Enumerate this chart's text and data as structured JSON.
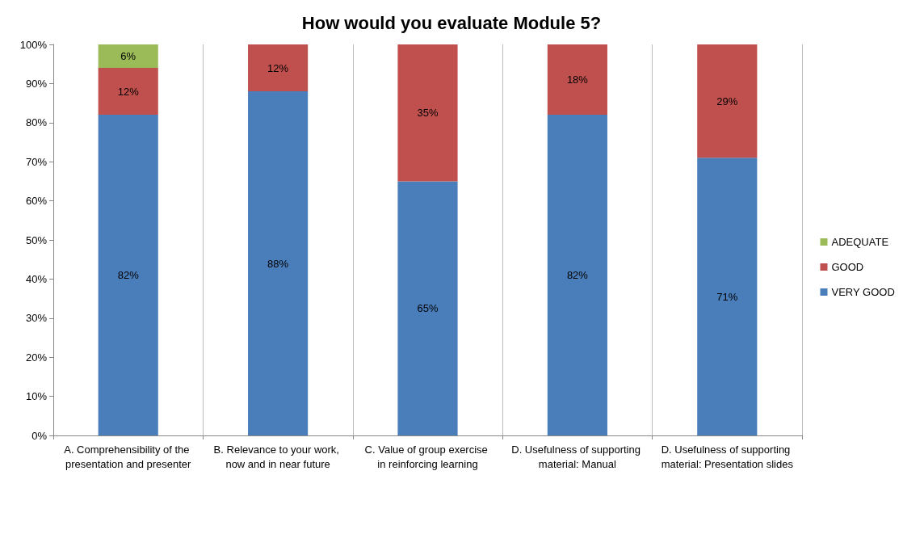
{
  "chart_data": {
    "type": "bar",
    "stacked": true,
    "title": "How would you evaluate Module 5?",
    "categories": [
      "A. Comprehensibility of the presentation and presenter",
      "B. Relevance to your work, now and in near future",
      "C. Value of group exercise in reinforcing learning",
      "D. Usefulness of supporting material: Manual",
      "D. Usefulness of supporting material: Presentation slides"
    ],
    "series": [
      {
        "name": "VERY GOOD",
        "color": "#4a7ebb",
        "values": [
          82,
          88,
          65,
          82,
          71
        ],
        "value_labels": [
          "82%",
          "88%",
          "65%",
          "82%",
          "71%"
        ]
      },
      {
        "name": "GOOD",
        "color": "#c0504d",
        "values": [
          12,
          12,
          35,
          18,
          29
        ],
        "value_labels": [
          "12%",
          "12%",
          "35%",
          "18%",
          "29%"
        ]
      },
      {
        "name": "ADEQUATE",
        "color": "#9bbb59",
        "values": [
          6,
          null,
          null,
          null,
          null
        ],
        "value_labels": [
          "6%",
          null,
          null,
          null,
          null
        ]
      }
    ],
    "ylim": [
      0,
      100
    ],
    "yticks": [
      {
        "value": 0,
        "label": "0%"
      },
      {
        "value": 10,
        "label": "10%"
      },
      {
        "value": 20,
        "label": "20%"
      },
      {
        "value": 30,
        "label": "30%"
      },
      {
        "value": 40,
        "label": "40%"
      },
      {
        "value": 50,
        "label": "50%"
      },
      {
        "value": 60,
        "label": "60%"
      },
      {
        "value": 70,
        "label": "70%"
      },
      {
        "value": 80,
        "label": "80%"
      },
      {
        "value": 90,
        "label": "90%"
      },
      {
        "value": 100,
        "label": "100%"
      }
    ],
    "grid": "x",
    "legend": "right"
  }
}
